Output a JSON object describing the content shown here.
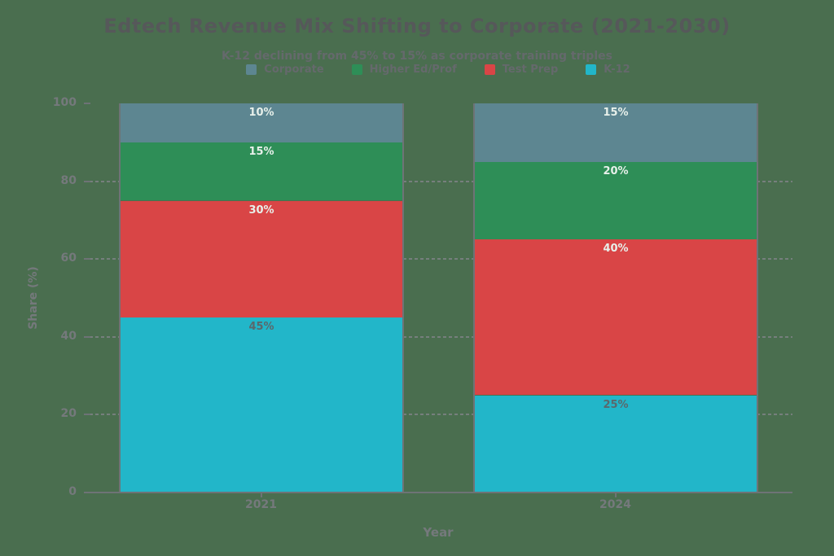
{
  "chart_data": {
    "type": "bar",
    "stacked": true,
    "title": "Edtech Revenue Mix Shifting to Corporate (2021-2030)",
    "subtitle": "K-12 declining from 45% to 15% as corporate training triples",
    "xlabel": "Year",
    "ylabel": "Share (%)",
    "background": "#4a6e4f",
    "categories": [
      "2021",
      "2024"
    ],
    "series": [
      {
        "name": "K-12",
        "color": "#22b6c9",
        "label_color": "#5a686c",
        "values": [
          45,
          25
        ]
      },
      {
        "name": "Test Prep",
        "color": "#d94546",
        "label_color": "#e7f0ea",
        "values": [
          30,
          40
        ]
      },
      {
        "name": "Higher Ed/Prof",
        "color": "#2e8e57",
        "label_color": "#e7f0ea",
        "values": [
          15,
          20
        ]
      },
      {
        "name": "Corporate",
        "color": "#5d8691",
        "label_color": "#e7f0ea",
        "values": [
          10,
          15
        ]
      }
    ],
    "legend_order": [
      "Corporate",
      "Higher Ed/Prof",
      "Test Prep",
      "K-12"
    ],
    "value_suffix": "%",
    "ylim": [
      0,
      100
    ],
    "yticks": [
      0,
      20,
      40,
      60,
      80,
      100
    ],
    "grid_values": [
      20,
      40,
      60,
      80
    ],
    "legend_position": "top-center",
    "grid": "dashed-horizontal"
  }
}
